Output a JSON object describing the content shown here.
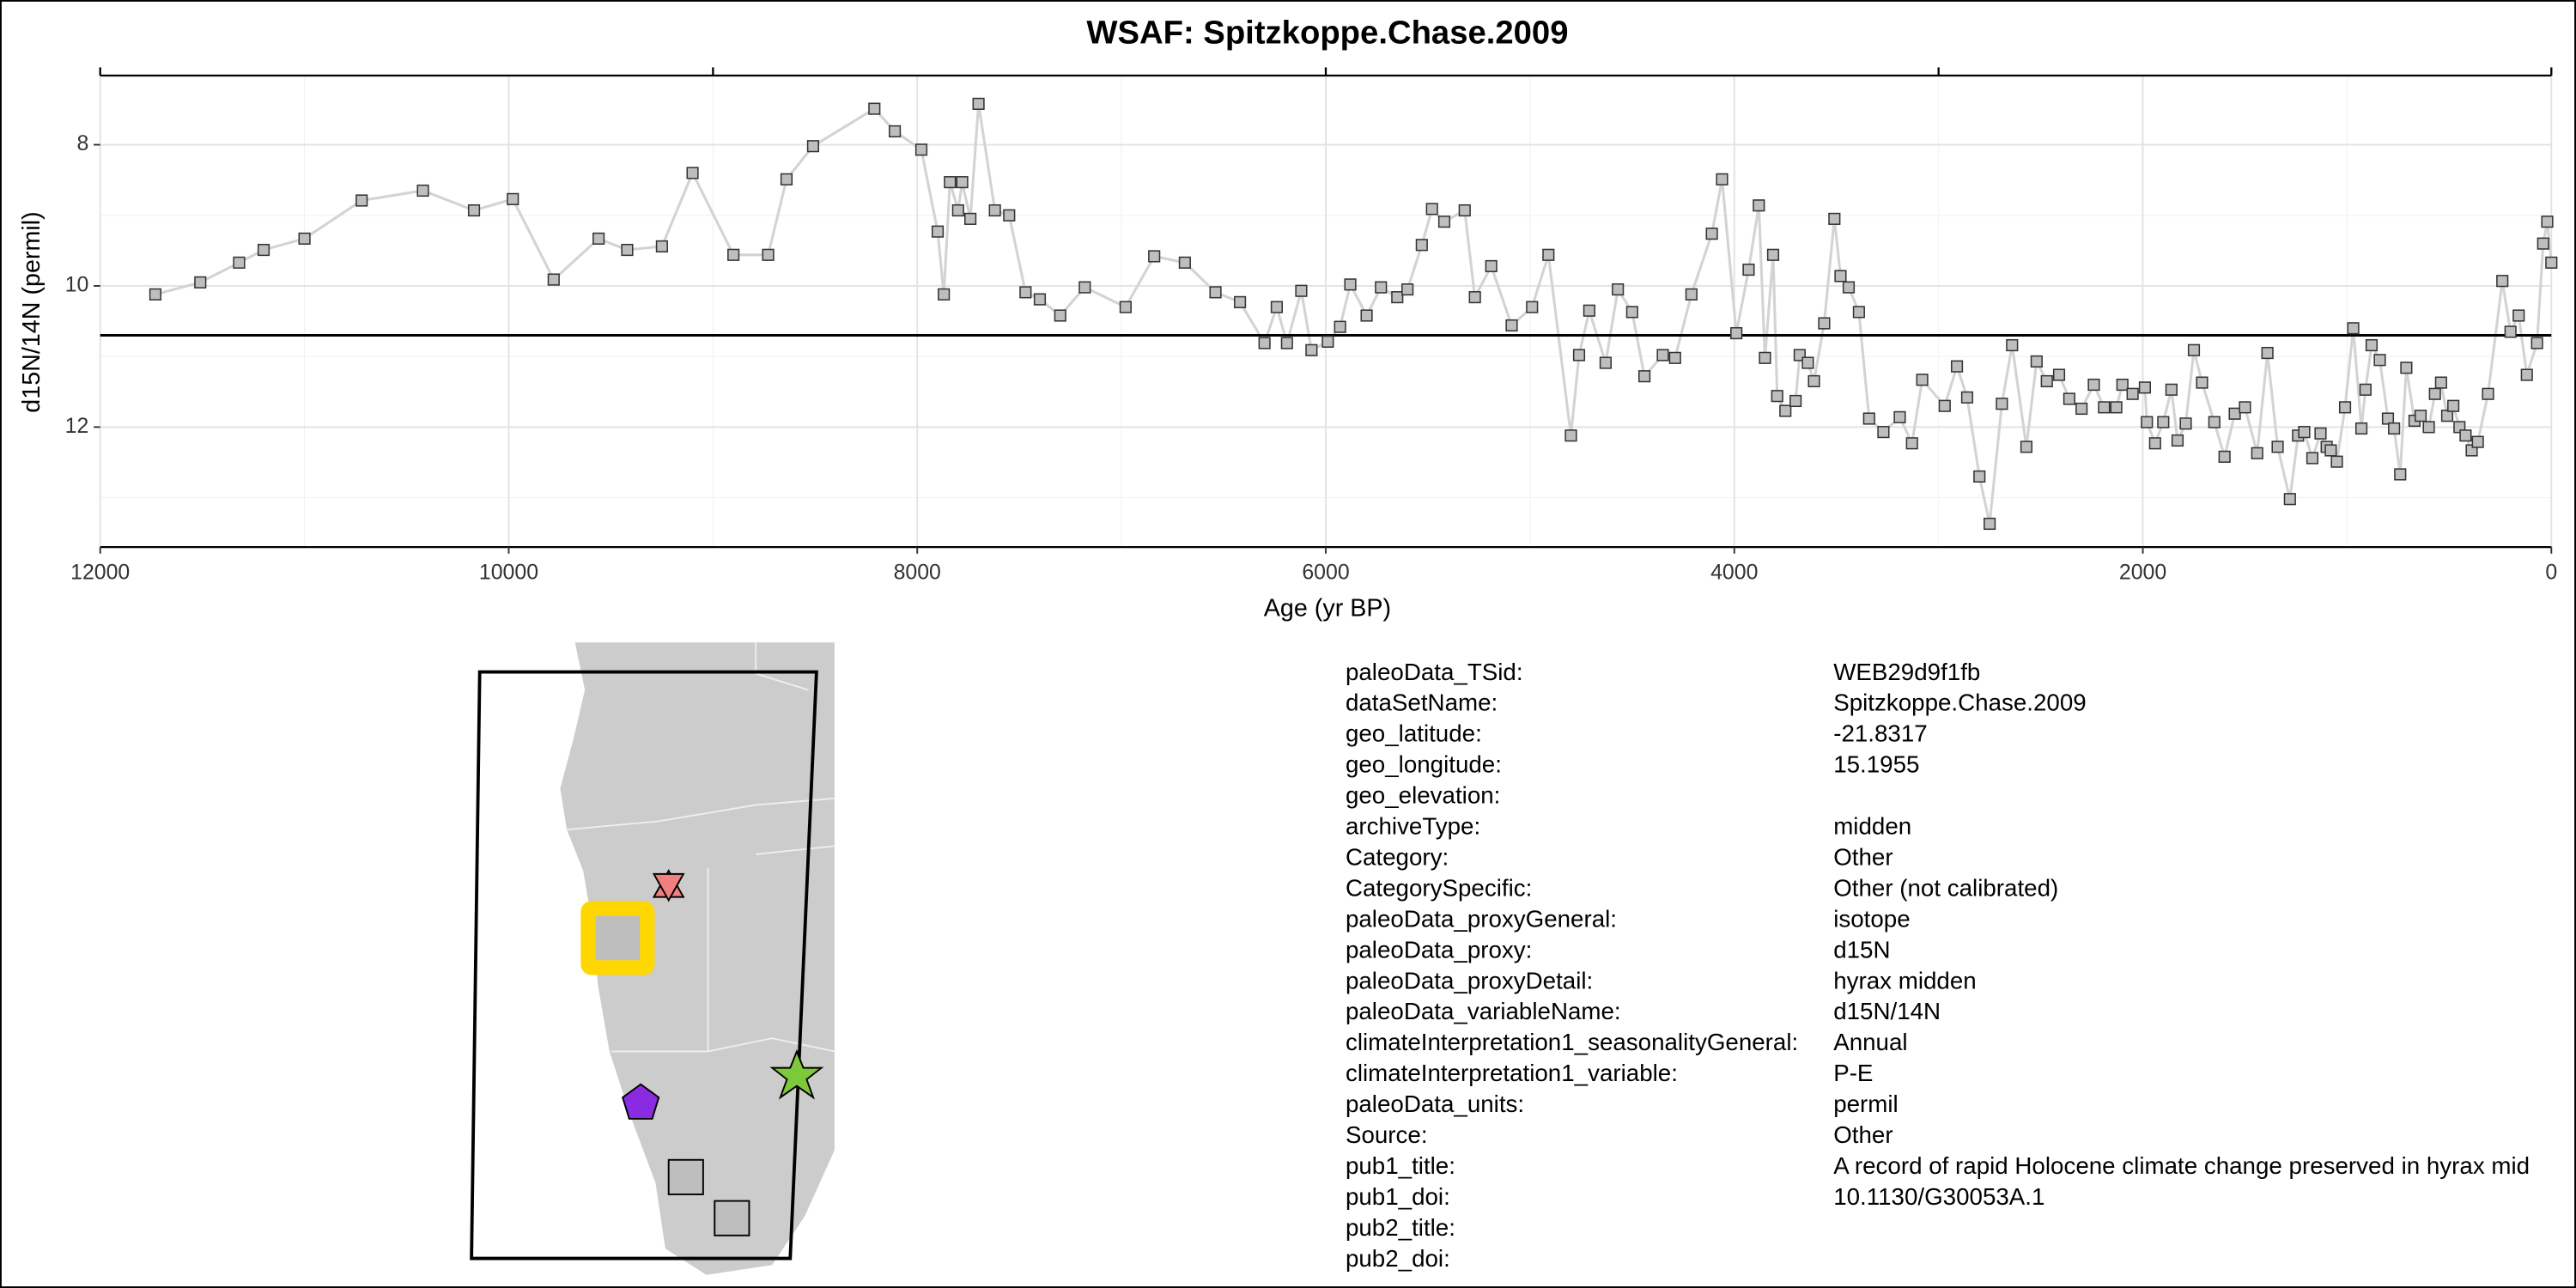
{
  "chart_data": {
    "type": "line",
    "title": "WSAF: Spitzkoppe.Chase.2009",
    "xlabel": "Age (yr BP)",
    "ylabel": "d15N/14N (permil)",
    "x": [
      11730,
      11510,
      11320,
      11200,
      11000,
      10720,
      10420,
      10170,
      9980,
      9780,
      9560,
      9420,
      9250,
      9100,
      8900,
      8730,
      8640,
      8510,
      8210,
      8110,
      7980,
      7900,
      7870,
      7840,
      7800,
      7780,
      7740,
      7700,
      7620,
      7550,
      7470,
      7400,
      7300,
      7180,
      6980,
      6840,
      6690,
      6540,
      6420,
      6300,
      6240,
      6190,
      6120,
      6070,
      5990,
      5930,
      5880,
      5800,
      5730,
      5650,
      5600,
      5530,
      5480,
      5420,
      5320,
      5270,
      5190,
      5090,
      4990,
      4910,
      4800,
      4760,
      4710,
      4630,
      4570,
      4500,
      4440,
      4350,
      4290,
      4210,
      4110,
      4060,
      3990,
      3930,
      3880,
      3850,
      3810,
      3790,
      3750,
      3700,
      3680,
      3640,
      3610,
      3560,
      3510,
      3480,
      3440,
      3390,
      3340,
      3270,
      3190,
      3130,
      3080,
      2970,
      2910,
      2860,
      2800,
      2750,
      2690,
      2640,
      2570,
      2520,
      2470,
      2410,
      2360,
      2300,
      2240,
      2190,
      2130,
      2100,
      2050,
      1990,
      1980,
      1940,
      1900,
      1860,
      1830,
      1790,
      1750,
      1710,
      1650,
      1600,
      1550,
      1500,
      1440,
      1390,
      1340,
      1280,
      1240,
      1210,
      1170,
      1130,
      1100,
      1080,
      1050,
      1010,
      970,
      930,
      910,
      880,
      840,
      800,
      770,
      740,
      710,
      670,
      640,
      600,
      570,
      540,
      510,
      480,
      450,
      420,
      390,
      360,
      310,
      240,
      200,
      160,
      120,
      70,
      40,
      20,
      0
    ],
    "values": [
      10.12,
      9.95,
      9.67,
      9.49,
      9.33,
      8.79,
      8.65,
      8.93,
      8.77,
      9.91,
      9.33,
      9.49,
      9.44,
      8.4,
      9.56,
      9.56,
      8.49,
      8.02,
      7.49,
      7.81,
      8.07,
      9.23,
      10.12,
      8.53,
      8.93,
      8.53,
      9.05,
      7.42,
      8.93,
      9.0,
      10.09,
      10.19,
      10.42,
      10.02,
      10.3,
      9.58,
      9.67,
      10.09,
      10.23,
      10.81,
      10.3,
      10.81,
      10.07,
      10.91,
      10.79,
      10.58,
      9.98,
      10.42,
      10.02,
      10.16,
      10.05,
      9.42,
      8.91,
      9.09,
      8.93,
      10.16,
      9.72,
      10.56,
      10.3,
      9.56,
      12.12,
      10.98,
      10.35,
      11.09,
      10.05,
      10.37,
      11.28,
      10.98,
      11.02,
      10.12,
      9.26,
      8.49,
      10.67,
      9.77,
      8.86,
      11.02,
      9.56,
      11.56,
      11.77,
      11.63,
      10.98,
      11.09,
      11.35,
      10.53,
      9.05,
      9.86,
      10.02,
      10.37,
      11.88,
      12.07,
      11.86,
      12.23,
      11.33,
      11.7,
      11.14,
      11.58,
      12.7,
      13.37,
      11.67,
      10.84,
      12.28,
      11.07,
      11.35,
      11.26,
      11.6,
      11.74,
      11.4,
      11.72,
      11.72,
      11.4,
      11.53,
      11.44,
      11.93,
      12.23,
      11.93,
      11.47,
      12.19,
      11.95,
      10.91,
      11.37,
      11.93,
      12.42,
      11.81,
      11.72,
      12.37,
      10.95,
      12.28,
      13.02,
      12.12,
      12.07,
      12.44,
      12.09,
      12.28,
      12.33,
      12.49,
      11.72,
      10.6,
      12.02,
      11.47,
      10.84,
      11.05,
      11.88,
      12.02,
      12.67,
      11.16,
      11.91,
      11.84,
      12.0,
      11.53,
      11.37,
      11.84,
      11.7,
      12.0,
      12.12,
      12.33,
      12.21,
      11.53,
      9.93,
      10.65,
      10.42,
      11.26,
      10.81,
      9.4,
      9.09,
      9.67
    ],
    "line_color": "#d3d3d3",
    "marker_color": "#bebebe",
    "hline": 10.7,
    "xlim": [
      12000,
      0
    ],
    "ylim": [
      13.7,
      7.02
    ],
    "xticks": [
      12000,
      10000,
      8000,
      6000,
      4000,
      2000,
      0
    ],
    "xminor": [
      11000,
      9000,
      7000,
      5000,
      3000,
      1000
    ],
    "x2ticks": [
      12000,
      9000,
      6000,
      3000,
      0
    ],
    "yticks": [
      8,
      10,
      12
    ],
    "yminor": [
      9,
      11,
      13
    ],
    "grid": true
  },
  "metadata": {
    "rows": [
      [
        "paleoData_TSid:",
        "WEB29d9f1fb"
      ],
      [
        "dataSetName:",
        "Spitzkoppe.Chase.2009"
      ],
      [
        "geo_latitude:",
        "-21.8317"
      ],
      [
        "geo_longitude:",
        "15.1955"
      ],
      [
        "geo_elevation:"
      ],
      [
        "archiveType:",
        "midden"
      ],
      [
        "Category:",
        "Other"
      ],
      [
        "CategorySpecific:",
        "Other (not calibrated)"
      ],
      [
        "paleoData_proxyGeneral:",
        "isotope"
      ],
      [
        "paleoData_proxy:",
        "d15N"
      ],
      [
        "paleoData_proxyDetail:",
        "hyrax midden"
      ],
      [
        "paleoData_variableName:",
        "d15N/14N"
      ],
      [
        "climateInterpretation1_seasonalityGeneral:",
        "Annual"
      ],
      [
        "climateInterpretation1_variable:",
        "P-E"
      ],
      [
        "paleoData_units:",
        "permil"
      ],
      [
        "Source:",
        "Other"
      ],
      [
        "pub1_title:",
        "A record of rapid Holocene climate change preserved in hyrax mid"
      ],
      [
        "pub1_doi:",
        "10.1130/G30053A.1"
      ],
      [
        "pub2_title:"
      ],
      [
        "pub2_doi:"
      ]
    ]
  }
}
